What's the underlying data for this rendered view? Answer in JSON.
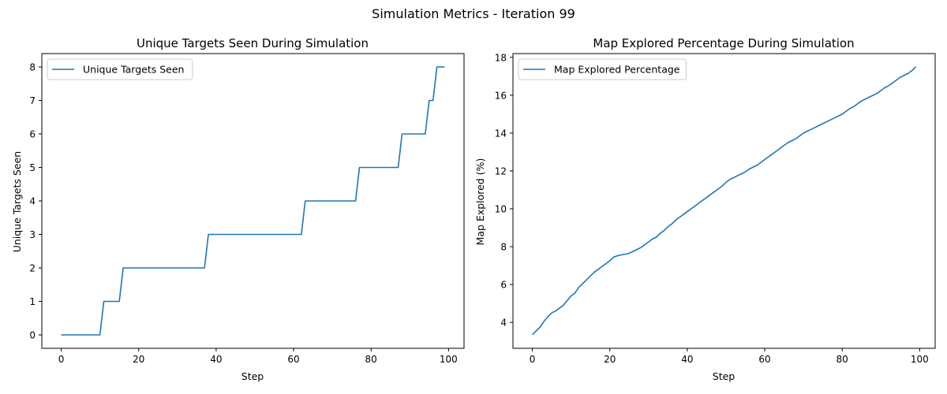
{
  "figure": {
    "suptitle": "Simulation Metrics - Iteration 99"
  },
  "chart_data": [
    {
      "type": "line",
      "title": "Unique Targets Seen During Simulation",
      "xlabel": "Step",
      "ylabel": "Unique Targets Seen",
      "xlim": [
        -5,
        104
      ],
      "ylim": [
        -0.4,
        8.4
      ],
      "xticks": [
        0,
        20,
        40,
        60,
        80,
        100
      ],
      "yticks": [
        0,
        1,
        2,
        3,
        4,
        5,
        6,
        7,
        8
      ],
      "grid": false,
      "legend_position": "upper left",
      "series": [
        {
          "name": "Unique Targets Seen",
          "color": "#1f77b4",
          "values": [
            0,
            0,
            0,
            0,
            0,
            0,
            0,
            0,
            0,
            0,
            0,
            1,
            1,
            1,
            1,
            1,
            2,
            2,
            2,
            2,
            2,
            2,
            2,
            2,
            2,
            2,
            2,
            2,
            2,
            2,
            2,
            2,
            2,
            2,
            2,
            2,
            2,
            2,
            3,
            3,
            3,
            3,
            3,
            3,
            3,
            3,
            3,
            3,
            3,
            3,
            3,
            3,
            3,
            3,
            3,
            3,
            3,
            3,
            3,
            3,
            3,
            3,
            3,
            4,
            4,
            4,
            4,
            4,
            4,
            4,
            4,
            4,
            4,
            4,
            4,
            4,
            4,
            5,
            5,
            5,
            5,
            5,
            5,
            5,
            5,
            5,
            5,
            5,
            6,
            6,
            6,
            6,
            6,
            6,
            6,
            7,
            7,
            8,
            8,
            8
          ]
        }
      ]
    },
    {
      "type": "line",
      "title": "Map Explored Percentage During Simulation",
      "xlabel": "Step",
      "ylabel": "Map Explored (%)",
      "xlim": [
        -5,
        104
      ],
      "ylim": [
        2.63,
        18.2
      ],
      "xticks": [
        0,
        20,
        40,
        60,
        80,
        100
      ],
      "yticks": [
        4,
        6,
        8,
        10,
        12,
        14,
        16,
        18
      ],
      "grid": false,
      "legend_position": "upper left",
      "series": [
        {
          "name": "Map Explored Percentage",
          "color": "#1f77b4",
          "values": [
            3.35,
            3.55,
            3.75,
            4.05,
            4.3,
            4.5,
            4.6,
            4.75,
            4.9,
            5.15,
            5.4,
            5.55,
            5.85,
            6.05,
            6.25,
            6.45,
            6.65,
            6.8,
            6.95,
            7.1,
            7.25,
            7.45,
            7.52,
            7.57,
            7.6,
            7.65,
            7.75,
            7.85,
            7.95,
            8.1,
            8.25,
            8.4,
            8.5,
            8.7,
            8.85,
            9.05,
            9.2,
            9.4,
            9.55,
            9.7,
            9.85,
            10.0,
            10.15,
            10.3,
            10.45,
            10.6,
            10.75,
            10.9,
            11.05,
            11.2,
            11.4,
            11.55,
            11.65,
            11.75,
            11.85,
            11.95,
            12.1,
            12.2,
            12.3,
            12.45,
            12.6,
            12.75,
            12.9,
            13.05,
            13.2,
            13.35,
            13.5,
            13.6,
            13.7,
            13.85,
            14.0,
            14.1,
            14.2,
            14.3,
            14.4,
            14.5,
            14.6,
            14.7,
            14.8,
            14.9,
            15.0,
            15.15,
            15.3,
            15.4,
            15.55,
            15.7,
            15.8,
            15.9,
            16.0,
            16.1,
            16.25,
            16.4,
            16.5,
            16.65,
            16.8,
            16.95,
            17.05,
            17.15,
            17.3,
            17.5
          ]
        }
      ]
    }
  ]
}
